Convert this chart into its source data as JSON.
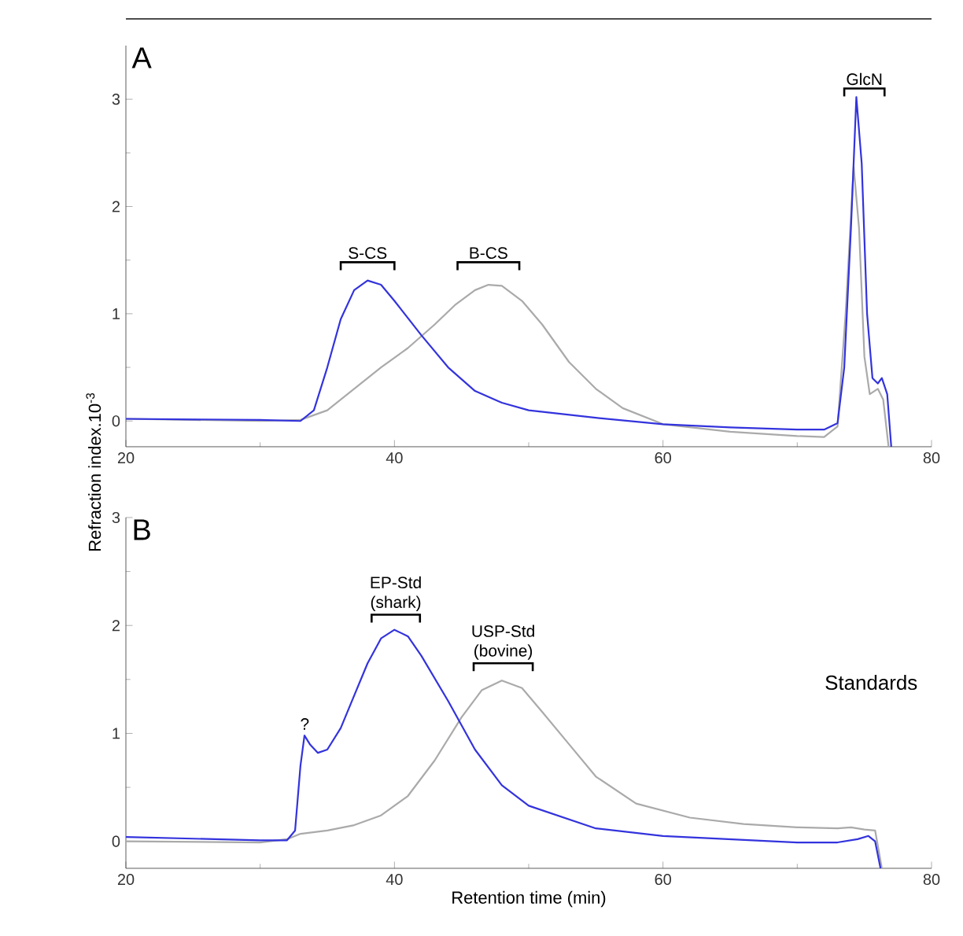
{
  "chart_data": [
    {
      "type": "line",
      "title": "A",
      "xlim": [
        20,
        80
      ],
      "ylim": [
        -0.24,
        3.5
      ],
      "xticks": [
        20,
        40,
        60,
        80
      ],
      "yticks": [
        0,
        1,
        2,
        3
      ],
      "series": [
        {
          "color": "#aaaaaa",
          "x": [
            20,
            30,
            33,
            35,
            37,
            39,
            41,
            43,
            44.5,
            46,
            47,
            48,
            49.5,
            51,
            53,
            55,
            57,
            60,
            65,
            70,
            72,
            73,
            73.6,
            74.2,
            74.6,
            75,
            75.4,
            76,
            76.4,
            76.8
          ],
          "values": [
            0.02,
            0.0,
            0.01,
            0.1,
            0.3,
            0.5,
            0.68,
            0.9,
            1.08,
            1.22,
            1.27,
            1.26,
            1.12,
            0.9,
            0.55,
            0.3,
            0.12,
            -0.03,
            -0.1,
            -0.14,
            -0.15,
            -0.05,
            1.0,
            2.37,
            1.8,
            0.6,
            0.25,
            0.3,
            0.2,
            -0.24
          ]
        },
        {
          "color": "#3333dd",
          "x": [
            20,
            30,
            33,
            34,
            35,
            36,
            37,
            38,
            39,
            40,
            42,
            44,
            46,
            48,
            50,
            55,
            60,
            65,
            70,
            72,
            73,
            73.5,
            74,
            74.4,
            74.8,
            75.2,
            75.6,
            76,
            76.3,
            76.7,
            77
          ],
          "values": [
            0.02,
            0.01,
            0.0,
            0.1,
            0.5,
            0.95,
            1.22,
            1.31,
            1.27,
            1.12,
            0.8,
            0.5,
            0.28,
            0.17,
            0.1,
            0.03,
            -0.03,
            -0.06,
            -0.08,
            -0.08,
            -0.02,
            0.5,
            1.8,
            3.02,
            2.4,
            1.0,
            0.4,
            0.35,
            0.4,
            0.25,
            -0.24
          ]
        }
      ],
      "annotations": [
        "S-CS",
        "B-CS",
        "GlcN"
      ]
    },
    {
      "type": "line",
      "title": "B",
      "xlim": [
        20,
        80
      ],
      "ylim": [
        -0.25,
        3
      ],
      "xticks": [
        20,
        40,
        60,
        80
      ],
      "yticks": [
        0,
        1,
        2,
        3
      ],
      "xlabel": "Retention time (min)",
      "ylabel": "Refraction index.10$^{-3}$",
      "series": [
        {
          "color": "#aaaaaa",
          "x": [
            20,
            30,
            32,
            33,
            35,
            37,
            39,
            41,
            43,
            45,
            46.5,
            48,
            49.5,
            51,
            53,
            55,
            58,
            62,
            66,
            70,
            73,
            74,
            75,
            75.8,
            76.3
          ],
          "values": [
            0.0,
            -0.01,
            0.02,
            0.07,
            0.1,
            0.15,
            0.24,
            0.42,
            0.75,
            1.15,
            1.4,
            1.49,
            1.42,
            1.2,
            0.9,
            0.6,
            0.35,
            0.22,
            0.16,
            0.13,
            0.12,
            0.13,
            0.11,
            0.1,
            -0.25
          ]
        },
        {
          "color": "#3333dd",
          "x": [
            20,
            30,
            32,
            32.6,
            33,
            33.3,
            33.7,
            34.3,
            35,
            36,
            37,
            38,
            39,
            40,
            41,
            42,
            44,
            46,
            48,
            50,
            55,
            60,
            65,
            70,
            73,
            74.5,
            75.3,
            75.8,
            76.2
          ],
          "values": [
            0.04,
            0.01,
            0.01,
            0.1,
            0.7,
            0.98,
            0.9,
            0.82,
            0.85,
            1.05,
            1.35,
            1.65,
            1.88,
            1.96,
            1.9,
            1.72,
            1.3,
            0.85,
            0.52,
            0.33,
            0.12,
            0.05,
            0.02,
            -0.01,
            -0.01,
            0.02,
            0.05,
            0.0,
            -0.25
          ]
        }
      ],
      "annotations": [
        "EP-Std (shark)",
        "USP-Std (bovine)",
        "?",
        "Standards"
      ]
    }
  ]
}
